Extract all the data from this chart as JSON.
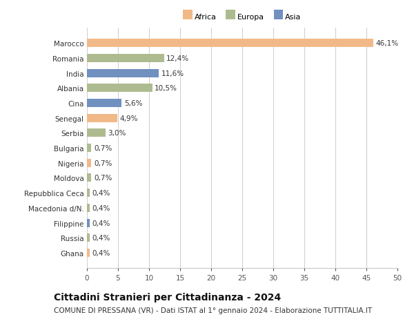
{
  "countries": [
    "Marocco",
    "Romania",
    "India",
    "Albania",
    "Cina",
    "Senegal",
    "Serbia",
    "Bulgaria",
    "Nigeria",
    "Moldova",
    "Repubblica Ceca",
    "Macedonia d/N.",
    "Filippine",
    "Russia",
    "Ghana"
  ],
  "values": [
    46.1,
    12.4,
    11.6,
    10.5,
    5.6,
    4.9,
    3.0,
    0.7,
    0.7,
    0.7,
    0.4,
    0.4,
    0.4,
    0.4,
    0.4
  ],
  "labels": [
    "46,1%",
    "12,4%",
    "11,6%",
    "10,5%",
    "5,6%",
    "4,9%",
    "3,0%",
    "0,7%",
    "0,7%",
    "0,7%",
    "0,4%",
    "0,4%",
    "0,4%",
    "0,4%",
    "0,4%"
  ],
  "continents": [
    "Africa",
    "Europa",
    "Asia",
    "Europa",
    "Asia",
    "Africa",
    "Europa",
    "Europa",
    "Africa",
    "Europa",
    "Europa",
    "Europa",
    "Asia",
    "Europa",
    "Africa"
  ],
  "continent_colors": {
    "Africa": "#F2B988",
    "Europa": "#AEBB90",
    "Asia": "#7090C0"
  },
  "legend_labels": [
    "Africa",
    "Europa",
    "Asia"
  ],
  "legend_colors": [
    "#F2B988",
    "#AEBB90",
    "#7090C0"
  ],
  "xlim": [
    0,
    50
  ],
  "xticks": [
    0,
    5,
    10,
    15,
    20,
    25,
    30,
    35,
    40,
    45,
    50
  ],
  "title": "Cittadini Stranieri per Cittadinanza - 2024",
  "subtitle": "COMUNE DI PRESSANA (VR) - Dati ISTAT al 1° gennaio 2024 - Elaborazione TUTTITALIA.IT",
  "background_color": "#ffffff",
  "bar_height": 0.55,
  "grid_color": "#d0d0d0",
  "tick_fontsize": 7.5,
  "label_fontsize": 7.5,
  "title_fontsize": 10,
  "subtitle_fontsize": 7.5
}
